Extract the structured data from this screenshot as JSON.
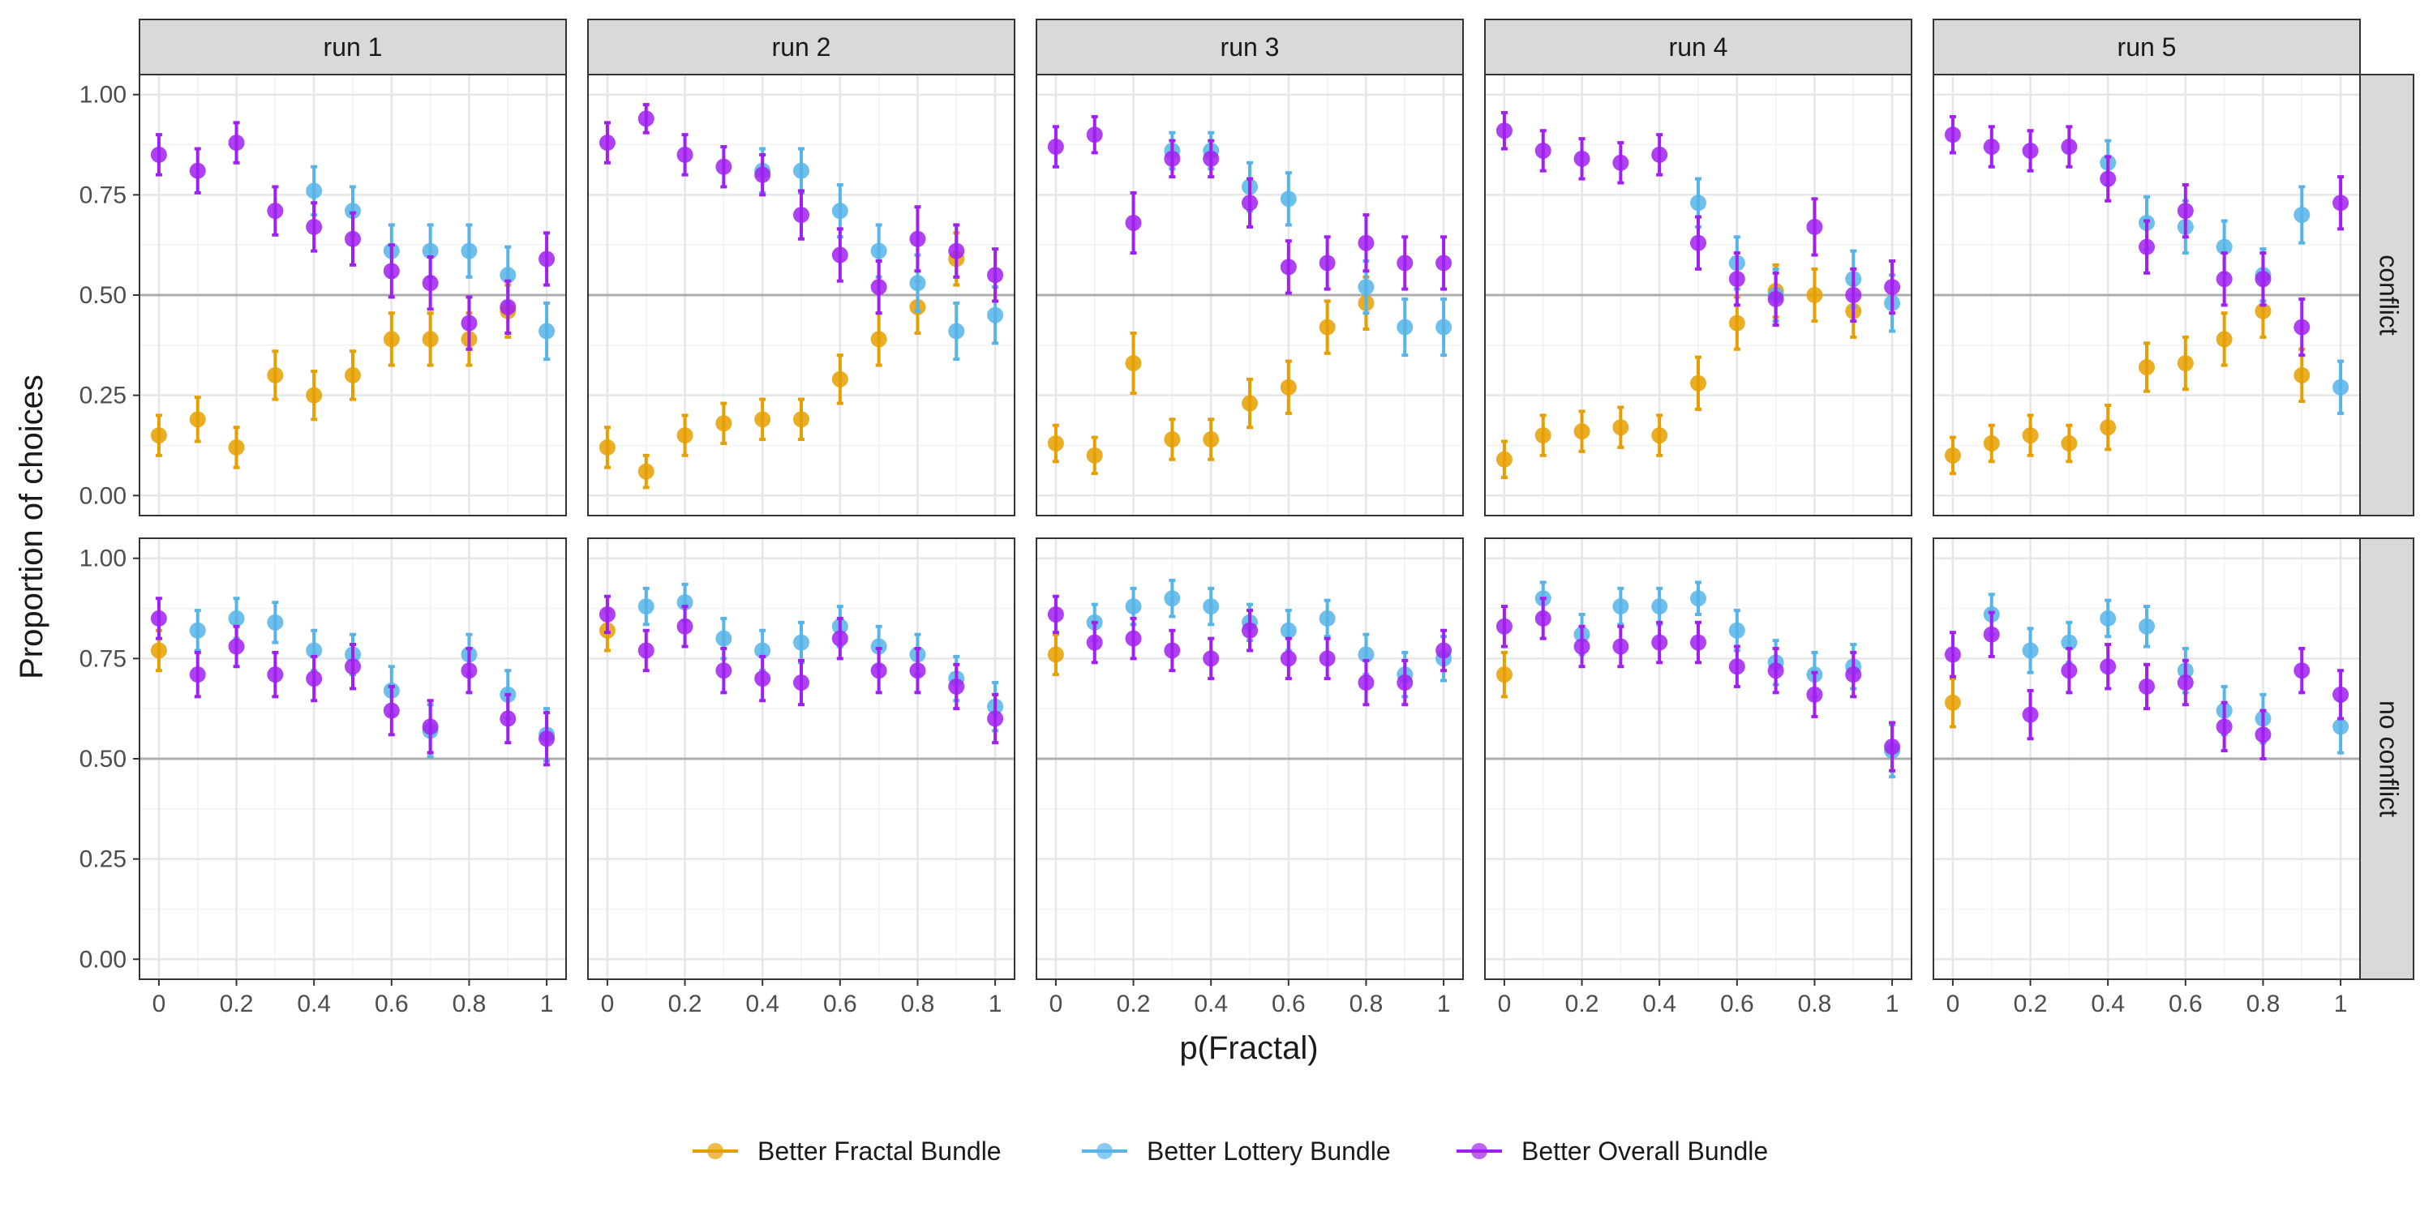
{
  "chart_data": {
    "type": "scatter",
    "xlabel": "p(Fractal)",
    "ylabel": "Proportion of choices",
    "x": [
      0,
      0.1,
      0.2,
      0.3,
      0.4,
      0.5,
      0.6,
      0.7,
      0.8,
      0.9,
      1
    ],
    "xlim": [
      -0.05,
      1.05
    ],
    "ylim": [
      -0.05,
      1.05
    ],
    "x_ticks": [
      0,
      0.2,
      0.4,
      0.6,
      0.8,
      1
    ],
    "x_tick_labels": [
      "0",
      "0.2",
      "0.4",
      "0.6",
      "0.8",
      "1"
    ],
    "y_ticks": [
      0,
      0.25,
      0.5,
      0.75,
      1
    ],
    "y_tick_labels": [
      "0.00",
      "0.25",
      "0.50",
      "0.75",
      "1.00"
    ],
    "reference_line": 0.5,
    "grid": true,
    "legend_position": "bottom",
    "columns": [
      "run 1",
      "run 2",
      "run 3",
      "run 4",
      "run 5"
    ],
    "rows": [
      "conflict",
      "no conflict"
    ],
    "series_info": [
      {
        "name": "Better Fractal Bundle",
        "color": "#E69F00"
      },
      {
        "name": "Better Lottery Bundle",
        "color": "#56B4E9"
      },
      {
        "name": "Better Overall Bundle",
        "color": "#A020F0"
      }
    ],
    "panels": [
      {
        "column": "run 1",
        "row": "conflict",
        "series": [
          {
            "name": "Better Fractal Bundle",
            "values": [
              0.15,
              0.19,
              0.12,
              0.3,
              0.25,
              0.3,
              0.39,
              0.39,
              0.39,
              0.46,
              null
            ],
            "err": [
              0.05,
              0.055,
              0.05,
              0.06,
              0.06,
              0.06,
              0.065,
              0.065,
              0.065,
              0.065,
              null
            ]
          },
          {
            "name": "Better Lottery Bundle",
            "values": [
              null,
              null,
              null,
              null,
              0.76,
              0.71,
              0.61,
              0.61,
              0.61,
              0.55,
              0.41
            ],
            "err": [
              null,
              null,
              null,
              null,
              0.06,
              0.06,
              0.065,
              0.065,
              0.065,
              0.07,
              0.07
            ]
          },
          {
            "name": "Better Overall Bundle",
            "values": [
              0.85,
              0.81,
              0.88,
              0.71,
              0.67,
              0.64,
              0.56,
              0.53,
              0.43,
              0.47,
              0.59
            ],
            "err": [
              0.05,
              0.055,
              0.05,
              0.06,
              0.06,
              0.065,
              0.065,
              0.065,
              0.065,
              0.065,
              0.065
            ]
          }
        ]
      },
      {
        "column": "run 2",
        "row": "conflict",
        "series": [
          {
            "name": "Better Fractal Bundle",
            "values": [
              0.12,
              0.06,
              0.15,
              0.18,
              0.19,
              0.19,
              0.29,
              0.39,
              0.47,
              0.59,
              null
            ],
            "err": [
              0.05,
              0.04,
              0.05,
              0.05,
              0.05,
              0.05,
              0.06,
              0.065,
              0.065,
              0.065,
              null
            ]
          },
          {
            "name": "Better Lottery Bundle",
            "values": [
              null,
              null,
              null,
              null,
              0.81,
              0.81,
              0.71,
              0.61,
              0.53,
              0.41,
              0.45
            ],
            "err": [
              null,
              null,
              null,
              null,
              0.055,
              0.055,
              0.065,
              0.065,
              0.07,
              0.07,
              0.07
            ]
          },
          {
            "name": "Better Overall Bundle",
            "values": [
              0.88,
              0.94,
              0.85,
              0.82,
              0.8,
              0.7,
              0.6,
              0.52,
              0.64,
              0.61,
              0.55
            ],
            "err": [
              0.05,
              0.035,
              0.05,
              0.05,
              0.05,
              0.06,
              0.065,
              0.065,
              0.08,
              0.065,
              0.065
            ]
          }
        ]
      },
      {
        "column": "run 3",
        "row": "conflict",
        "series": [
          {
            "name": "Better Fractal Bundle",
            "values": [
              0.13,
              0.1,
              0.33,
              0.14,
              0.14,
              0.23,
              0.27,
              0.42,
              0.48,
              null,
              null
            ],
            "err": [
              0.045,
              0.045,
              0.075,
              0.05,
              0.05,
              0.06,
              0.065,
              0.065,
              0.065,
              null,
              null
            ]
          },
          {
            "name": "Better Lottery Bundle",
            "values": [
              null,
              null,
              null,
              0.86,
              0.86,
              0.77,
              0.74,
              null,
              0.52,
              0.42,
              0.42
            ],
            "err": [
              null,
              null,
              null,
              0.045,
              0.045,
              0.06,
              0.065,
              null,
              0.065,
              0.07,
              0.07
            ]
          },
          {
            "name": "Better Overall Bundle",
            "values": [
              0.87,
              0.9,
              0.68,
              0.84,
              0.84,
              0.73,
              0.57,
              0.58,
              0.63,
              0.58,
              0.58
            ],
            "err": [
              0.05,
              0.045,
              0.075,
              0.045,
              0.045,
              0.06,
              0.065,
              0.065,
              0.07,
              0.065,
              0.065
            ]
          }
        ]
      },
      {
        "column": "run 4",
        "row": "conflict",
        "series": [
          {
            "name": "Better Fractal Bundle",
            "values": [
              0.09,
              0.15,
              0.16,
              0.17,
              0.15,
              0.28,
              0.43,
              0.51,
              0.5,
              0.46,
              null
            ],
            "err": [
              0.045,
              0.05,
              0.05,
              0.05,
              0.05,
              0.065,
              0.065,
              0.065,
              0.065,
              0.065,
              null
            ]
          },
          {
            "name": "Better Lottery Bundle",
            "values": [
              null,
              null,
              null,
              null,
              null,
              0.73,
              0.58,
              0.5,
              null,
              0.54,
              0.48
            ],
            "err": [
              null,
              null,
              null,
              null,
              null,
              0.06,
              0.065,
              0.065,
              null,
              0.07,
              0.07
            ]
          },
          {
            "name": "Better Overall Bundle",
            "values": [
              0.91,
              0.86,
              0.84,
              0.83,
              0.85,
              0.63,
              0.54,
              0.49,
              0.67,
              0.5,
              0.52
            ],
            "err": [
              0.045,
              0.05,
              0.05,
              0.05,
              0.05,
              0.065,
              0.065,
              0.065,
              0.07,
              0.065,
              0.065
            ]
          }
        ]
      },
      {
        "column": "run 5",
        "row": "conflict",
        "series": [
          {
            "name": "Better Fractal Bundle",
            "values": [
              0.1,
              0.13,
              0.15,
              0.13,
              0.17,
              0.32,
              0.33,
              0.39,
              0.46,
              0.3,
              null
            ],
            "err": [
              0.045,
              0.045,
              0.05,
              0.045,
              0.055,
              0.06,
              0.065,
              0.065,
              0.065,
              0.065,
              null
            ]
          },
          {
            "name": "Better Lottery Bundle",
            "values": [
              null,
              null,
              null,
              null,
              0.83,
              0.68,
              0.67,
              0.62,
              0.55,
              0.7,
              0.27
            ],
            "err": [
              null,
              null,
              null,
              null,
              0.055,
              0.065,
              0.065,
              0.065,
              0.065,
              0.07,
              0.065
            ]
          },
          {
            "name": "Better Overall Bundle",
            "values": [
              0.9,
              0.87,
              0.86,
              0.87,
              0.79,
              0.62,
              0.71,
              0.54,
              0.54,
              0.42,
              0.73
            ],
            "err": [
              0.045,
              0.05,
              0.05,
              0.05,
              0.055,
              0.065,
              0.065,
              0.065,
              0.065,
              0.07,
              0.065
            ]
          }
        ]
      },
      {
        "column": "run 1",
        "row": "no conflict",
        "series": [
          {
            "name": "Better Fractal Bundle",
            "values": [
              0.77,
              null,
              null,
              null,
              null,
              null,
              null,
              null,
              null,
              null,
              null
            ],
            "err": [
              0.05,
              null,
              null,
              null,
              null,
              null,
              null,
              null,
              null,
              null,
              null
            ]
          },
          {
            "name": "Better Lottery Bundle",
            "values": [
              null,
              0.82,
              0.85,
              0.84,
              0.77,
              0.76,
              0.67,
              0.57,
              0.76,
              0.66,
              0.56
            ],
            "err": [
              null,
              0.05,
              0.05,
              0.05,
              0.05,
              0.05,
              0.06,
              0.065,
              0.05,
              0.06,
              0.065
            ]
          },
          {
            "name": "Better Overall Bundle",
            "values": [
              0.85,
              0.71,
              0.78,
              0.71,
              0.7,
              0.73,
              0.62,
              0.58,
              0.72,
              0.6,
              0.55
            ],
            "err": [
              0.05,
              0.055,
              0.05,
              0.055,
              0.055,
              0.055,
              0.06,
              0.065,
              0.055,
              0.06,
              0.065
            ]
          }
        ]
      },
      {
        "column": "run 2",
        "row": "no conflict",
        "series": [
          {
            "name": "Better Fractal Bundle",
            "values": [
              0.82,
              null,
              null,
              null,
              null,
              null,
              null,
              null,
              null,
              null,
              null
            ],
            "err": [
              0.05,
              null,
              null,
              null,
              null,
              null,
              null,
              null,
              null,
              null,
              null
            ]
          },
          {
            "name": "Better Lottery Bundle",
            "values": [
              null,
              0.88,
              0.89,
              0.8,
              0.77,
              0.79,
              0.83,
              0.78,
              0.76,
              0.7,
              0.63
            ],
            "err": [
              null,
              0.045,
              0.045,
              0.05,
              0.05,
              0.05,
              0.05,
              0.05,
              0.05,
              0.055,
              0.06
            ]
          },
          {
            "name": "Better Overall Bundle",
            "values": [
              0.86,
              0.77,
              0.83,
              0.72,
              0.7,
              0.69,
              0.8,
              0.72,
              0.72,
              0.68,
              0.6
            ],
            "err": [
              0.045,
              0.05,
              0.05,
              0.055,
              0.055,
              0.055,
              0.05,
              0.055,
              0.055,
              0.055,
              0.06
            ]
          }
        ]
      },
      {
        "column": "run 3",
        "row": "no conflict",
        "series": [
          {
            "name": "Better Fractal Bundle",
            "values": [
              0.76,
              null,
              null,
              null,
              null,
              null,
              null,
              null,
              null,
              null,
              null
            ],
            "err": [
              0.05,
              null,
              null,
              null,
              null,
              null,
              null,
              null,
              null,
              null,
              null
            ]
          },
          {
            "name": "Better Lottery Bundle",
            "values": [
              null,
              0.84,
              0.88,
              0.9,
              0.88,
              0.84,
              0.82,
              0.85,
              0.76,
              0.71,
              0.75
            ],
            "err": [
              null,
              0.045,
              0.045,
              0.045,
              0.045,
              0.045,
              0.05,
              0.045,
              0.05,
              0.055,
              0.055
            ]
          },
          {
            "name": "Better Overall Bundle",
            "values": [
              0.86,
              0.79,
              0.8,
              0.77,
              0.75,
              0.82,
              0.75,
              0.75,
              0.69,
              0.69,
              0.77
            ],
            "err": [
              0.045,
              0.05,
              0.05,
              0.05,
              0.05,
              0.05,
              0.05,
              0.05,
              0.055,
              0.055,
              0.05
            ]
          }
        ]
      },
      {
        "column": "run 4",
        "row": "no conflict",
        "series": [
          {
            "name": "Better Fractal Bundle",
            "values": [
              0.71,
              null,
              null,
              null,
              null,
              null,
              null,
              null,
              null,
              null,
              null
            ],
            "err": [
              0.055,
              null,
              null,
              null,
              null,
              null,
              null,
              null,
              null,
              null,
              null
            ]
          },
          {
            "name": "Better Lottery Bundle",
            "values": [
              null,
              0.9,
              0.81,
              0.88,
              0.88,
              0.9,
              0.82,
              0.74,
              0.71,
              0.73,
              0.52
            ],
            "err": [
              null,
              0.04,
              0.05,
              0.045,
              0.045,
              0.04,
              0.05,
              0.055,
              0.055,
              0.055,
              0.065
            ]
          },
          {
            "name": "Better Overall Bundle",
            "values": [
              0.83,
              0.85,
              0.78,
              0.78,
              0.79,
              0.79,
              0.73,
              0.72,
              0.66,
              0.71,
              0.53
            ],
            "err": [
              0.05,
              0.05,
              0.05,
              0.05,
              0.05,
              0.05,
              0.05,
              0.055,
              0.055,
              0.055,
              0.06
            ]
          }
        ]
      },
      {
        "column": "run 5",
        "row": "no conflict",
        "series": [
          {
            "name": "Better Fractal Bundle",
            "values": [
              0.64,
              null,
              null,
              null,
              null,
              null,
              null,
              null,
              null,
              null,
              null
            ],
            "err": [
              0.06,
              null,
              null,
              null,
              null,
              null,
              null,
              null,
              null,
              null,
              null
            ]
          },
          {
            "name": "Better Lottery Bundle",
            "values": [
              null,
              0.86,
              0.77,
              0.79,
              0.85,
              0.83,
              0.72,
              0.62,
              0.6,
              null,
              0.58
            ],
            "err": [
              null,
              0.05,
              0.055,
              0.05,
              0.045,
              0.05,
              0.055,
              0.06,
              0.06,
              null,
              0.065
            ]
          },
          {
            "name": "Better Overall Bundle",
            "values": [
              0.76,
              0.81,
              0.61,
              0.72,
              0.73,
              0.68,
              0.69,
              0.58,
              0.56,
              0.72,
              0.66
            ],
            "err": [
              0.055,
              0.055,
              0.06,
              0.055,
              0.055,
              0.055,
              0.055,
              0.06,
              0.06,
              0.055,
              0.06
            ]
          }
        ]
      }
    ]
  }
}
